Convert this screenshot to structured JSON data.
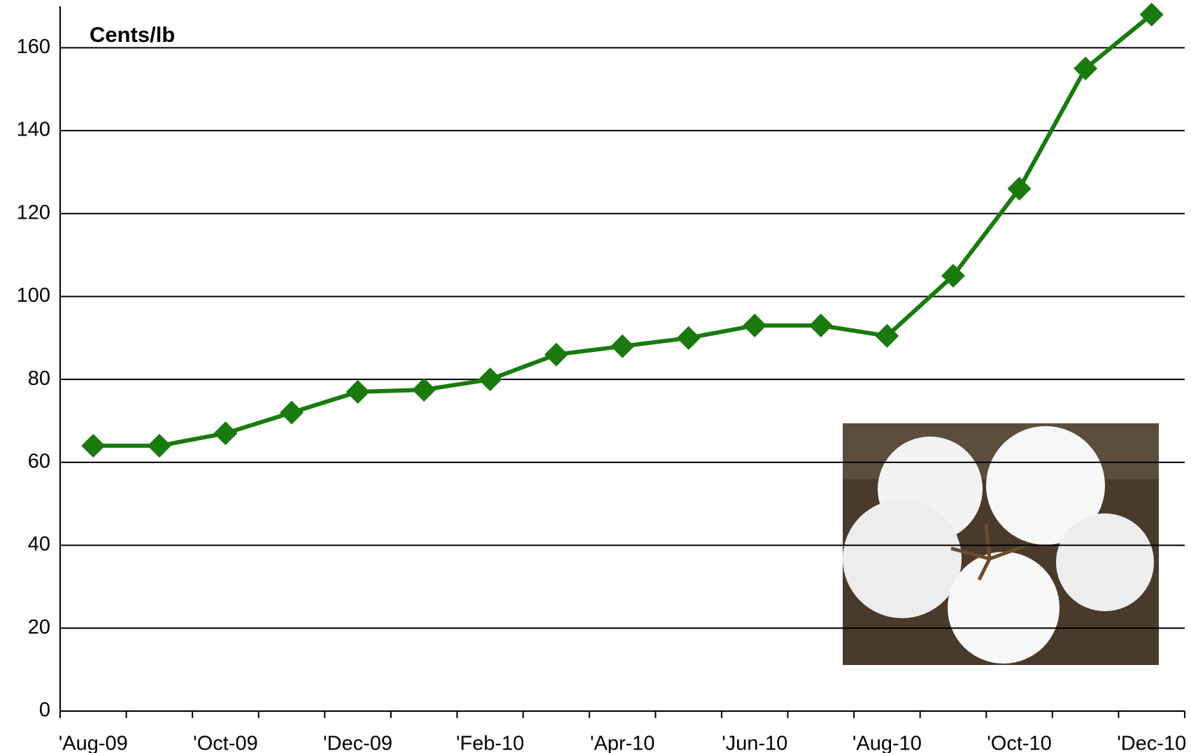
{
  "chart_data": {
    "type": "line",
    "annotation": "Cents/lb",
    "categories": [
      "'Aug-09",
      null,
      "'Oct-09",
      null,
      "'Dec-09",
      null,
      "'Feb-10",
      null,
      "'Apr-10",
      null,
      "'Jun-10",
      null,
      "'Aug-10",
      null,
      "'Oct-10",
      null,
      "'Dec-10"
    ],
    "series": [
      {
        "color": "#1a7a0f",
        "values": [
          64,
          64,
          67,
          72,
          77,
          77.5,
          80,
          86,
          88,
          90,
          93,
          93,
          90.5,
          105,
          126,
          155,
          168
        ]
      }
    ],
    "ylim": [
      0,
      170
    ],
    "yticks": [
      0,
      20,
      40,
      60,
      80,
      100,
      120,
      140,
      160
    ],
    "grid": true
  }
}
